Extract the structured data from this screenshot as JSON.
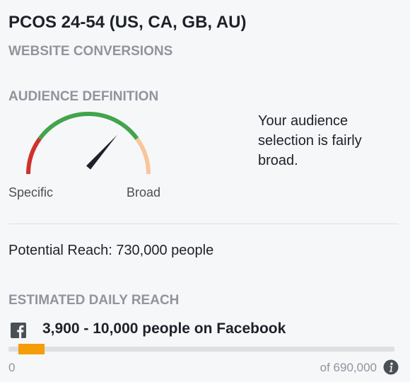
{
  "header": {
    "title": "PCOS 24-54 (US, CA, GB, AU)",
    "subtitle": "WEBSITE CONVERSIONS"
  },
  "audience_definition": {
    "heading": "AUDIENCE DEFINITION",
    "gauge": {
      "min_label": "Specific",
      "max_label": "Broad",
      "needle_level": 0.73,
      "colors": {
        "specific": "#d0312d",
        "defined": "#42a44b",
        "broad": "#f7c799",
        "needle": "#1d2129"
      }
    },
    "description": "Your audience selection is fairly broad."
  },
  "potential_reach": {
    "text": "Potential Reach: 730,000 people"
  },
  "daily_reach": {
    "heading": "ESTIMATED DAILY REACH",
    "icon": "facebook-icon",
    "range_text": "3,900 - 10,000 people on Facebook",
    "axis_min_label": "0",
    "axis_max_label": "of 690,000",
    "range_low": 3900,
    "range_high": 10000,
    "axis_max": 690000,
    "bar_color": "#f59c09",
    "info_icon": "info-icon"
  }
}
